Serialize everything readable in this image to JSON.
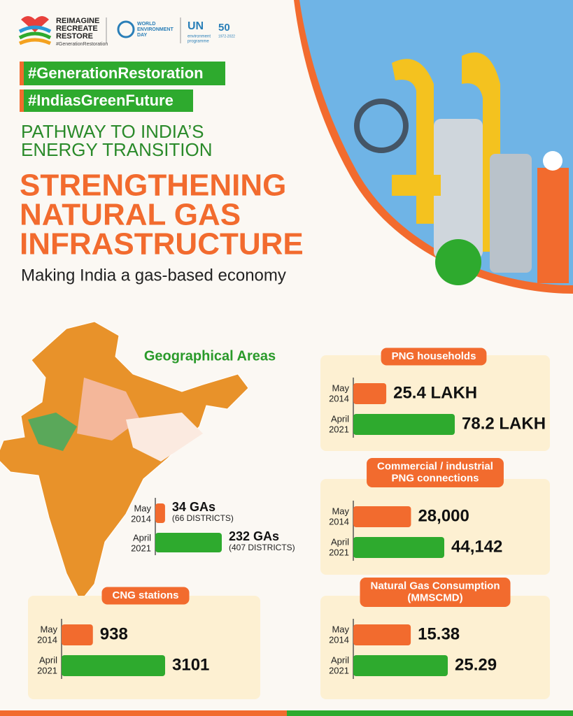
{
  "header": {
    "logo_lines": [
      "REIMAGINE",
      "RECREATE",
      "RESTORE"
    ],
    "logo_tag": "#GenerationRestoration",
    "wed_lines": [
      "WORLD",
      "ENVIRONMENT",
      "DAY"
    ],
    "un": "UN",
    "unep_lines": [
      "environment",
      "programme"
    ],
    "fifty": "50",
    "years": "1972-2022"
  },
  "hashtags": [
    "#GenerationRestoration",
    "#IndiasGreenFuture"
  ],
  "kicker": [
    "PATHWAY TO INDIA’S",
    "ENERGY TRANSITION"
  ],
  "title": [
    "STRENGTHENING",
    "NATURAL GAS",
    "INFRASTRUCTURE"
  ],
  "subtitle": "Making India a gas-based economy",
  "panels": [
    {
      "title": [
        "Geographical Areas"
      ],
      "rows": [
        {
          "period": [
            "May",
            "2014"
          ],
          "value": 34,
          "label": "34 GAs",
          "note": "(66 DISTRICTS)"
        },
        {
          "period": [
            "April",
            "2021"
          ],
          "value": 232,
          "label": "232 GAs",
          "note": "(407 DISTRICTS)"
        }
      ]
    },
    {
      "title": [
        "PNG households"
      ],
      "rows": [
        {
          "period": [
            "May",
            "2014"
          ],
          "value": 25.4,
          "label": "25.4 LAKH"
        },
        {
          "period": [
            "April",
            "2021"
          ],
          "value": 78.2,
          "label": "78.2 LAKH"
        }
      ]
    },
    {
      "title": [
        "Commercial / industrial",
        "PNG connections"
      ],
      "rows": [
        {
          "period": [
            "May",
            "2014"
          ],
          "value": 28000,
          "label": "28,000"
        },
        {
          "period": [
            "April",
            "2021"
          ],
          "value": 44142,
          "label": "44,142"
        }
      ]
    },
    {
      "title": [
        "CNG stations"
      ],
      "rows": [
        {
          "period": [
            "May",
            "2014"
          ],
          "value": 938,
          "label": "938"
        },
        {
          "period": [
            "April",
            "2021"
          ],
          "value": 3101,
          "label": "3101"
        }
      ]
    },
    {
      "title": [
        "Natural Gas Consumption",
        "(MMSCMD)"
      ],
      "rows": [
        {
          "period": [
            "May",
            "2014"
          ],
          "value": 15.38,
          "label": "15.38"
        },
        {
          "period": [
            "April",
            "2021"
          ],
          "value": 25.29,
          "label": "25.29"
        }
      ]
    }
  ]
}
